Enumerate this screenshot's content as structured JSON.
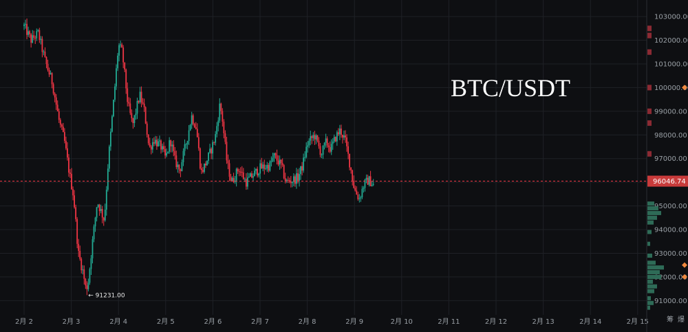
{
  "chart_data": {
    "type": "candlestick",
    "symbol": "BTC/USDT",
    "ylim": [
      90400,
      103700
    ],
    "y_ticks": [
      "91000.00",
      "92000.00",
      "93000.00",
      "94000.00",
      "95000.00",
      "96000.00",
      "97000.00",
      "98000.00",
      "99000.00",
      "100000.00",
      "101000.00",
      "102000.00",
      "103000.00"
    ],
    "x_ticks": [
      "2月 2",
      "2月 3",
      "2月 4",
      "2月 5",
      "2月 6",
      "2月 7",
      "2月 8",
      "2月 9",
      "2月 10",
      "2月 11",
      "2月 12",
      "2月 13",
      "2月 14",
      "2月 15"
    ],
    "current_price": 96046.74,
    "current_price_label": "96046.74",
    "min_label": "← 91231.00",
    "min_price": 91231.0,
    "corner_labels": [
      "筹",
      "爆"
    ],
    "up_color": "#22ab94",
    "down_color": "#f23645",
    "price_line_color": "#f23645",
    "path_anchors": [
      [
        0,
        102600
      ],
      [
        0.15,
        102000
      ],
      [
        0.3,
        102300
      ],
      [
        0.45,
        101100
      ],
      [
        0.6,
        100200
      ],
      [
        0.75,
        98500
      ],
      [
        0.85,
        97800
      ],
      [
        0.95,
        96500
      ],
      [
        1.05,
        95400
      ],
      [
        1.15,
        93000
      ],
      [
        1.25,
        92200
      ],
      [
        1.33,
        91231
      ],
      [
        1.45,
        93500
      ],
      [
        1.55,
        95200
      ],
      [
        1.7,
        94400
      ],
      [
        1.78,
        96800
      ],
      [
        1.9,
        99500
      ],
      [
        2.0,
        101800
      ],
      [
        2.08,
        101500
      ],
      [
        2.2,
        99300
      ],
      [
        2.3,
        98400
      ],
      [
        2.45,
        99700
      ],
      [
        2.55,
        99000
      ],
      [
        2.65,
        97400
      ],
      [
        2.75,
        97800
      ],
      [
        2.9,
        97500
      ],
      [
        3.0,
        97000
      ],
      [
        3.1,
        97800
      ],
      [
        3.2,
        96900
      ],
      [
        3.3,
        96500
      ],
      [
        3.45,
        97800
      ],
      [
        3.55,
        98800
      ],
      [
        3.65,
        98300
      ],
      [
        3.75,
        96400
      ],
      [
        3.85,
        96800
      ],
      [
        3.95,
        97300
      ],
      [
        4.05,
        97900
      ],
      [
        4.15,
        99300
      ],
      [
        4.2,
        98700
      ],
      [
        4.3,
        96800
      ],
      [
        4.4,
        96000
      ],
      [
        4.55,
        96600
      ],
      [
        4.7,
        96000
      ],
      [
        4.85,
        96300
      ],
      [
        5.0,
        96600
      ],
      [
        5.2,
        96700
      ],
      [
        5.3,
        97100
      ],
      [
        5.45,
        96700
      ],
      [
        5.55,
        96000
      ],
      [
        5.7,
        96100
      ],
      [
        5.8,
        96200
      ],
      [
        5.9,
        96700
      ],
      [
        6.0,
        97600
      ],
      [
        6.15,
        98000
      ],
      [
        6.3,
        97200
      ],
      [
        6.4,
        97700
      ],
      [
        6.5,
        97400
      ],
      [
        6.6,
        97900
      ],
      [
        6.7,
        98200
      ],
      [
        6.8,
        97800
      ],
      [
        6.9,
        96800
      ],
      [
        7.0,
        95700
      ],
      [
        7.1,
        95300
      ],
      [
        7.2,
        95900
      ],
      [
        7.3,
        96100
      ],
      [
        7.4,
        95900
      ]
    ]
  }
}
